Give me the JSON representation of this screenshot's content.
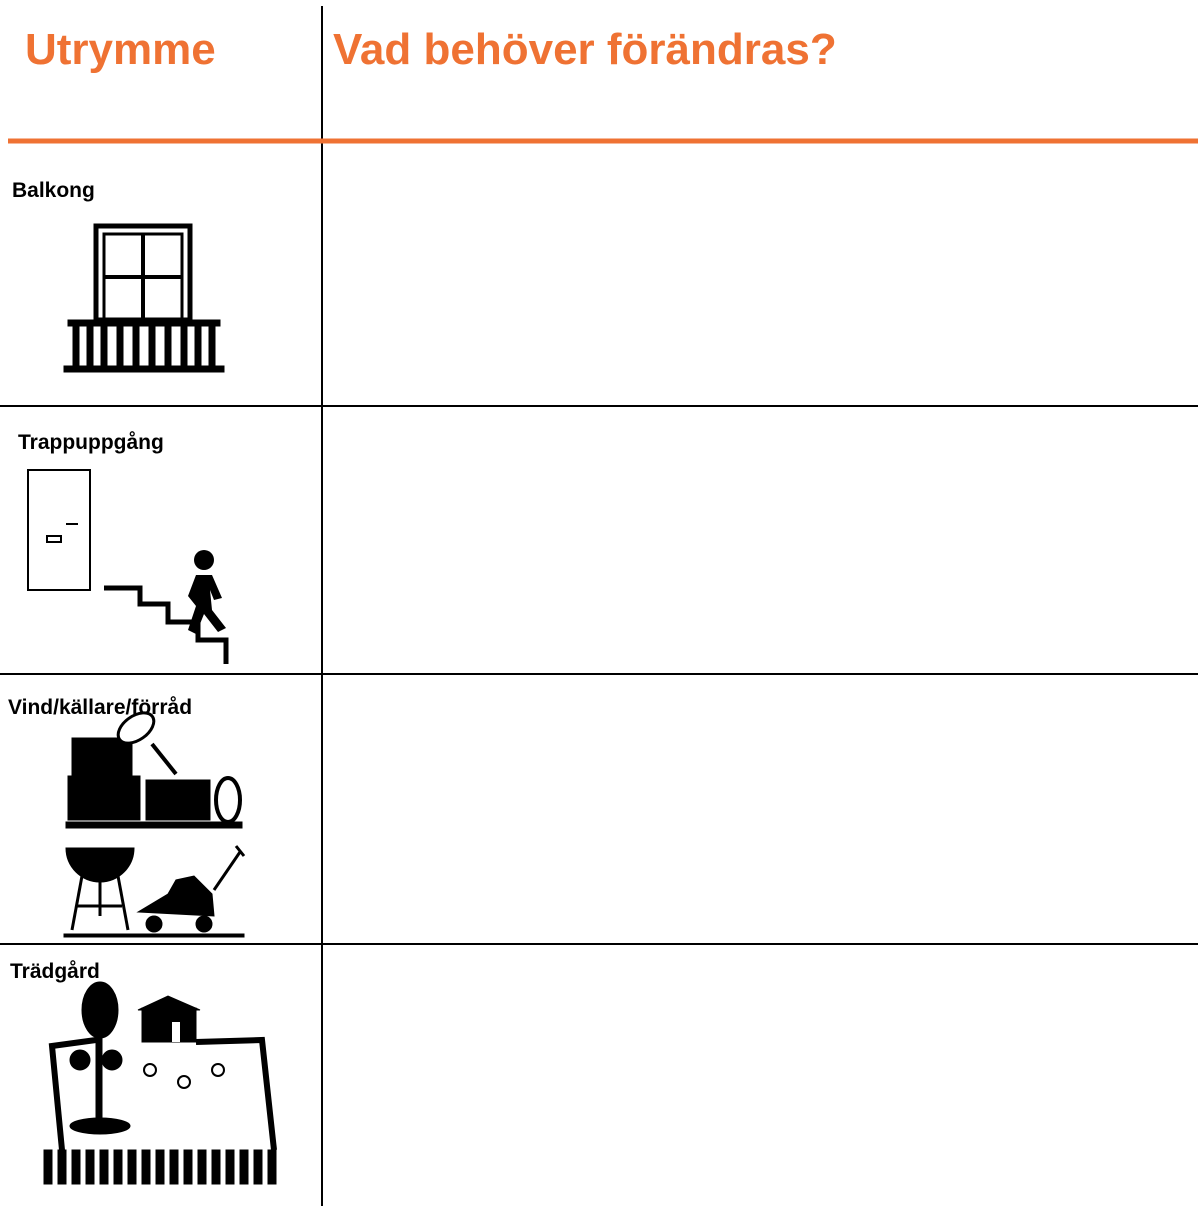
{
  "header": {
    "columns": [
      "Utrymme",
      "Vad behöver förändras?"
    ]
  },
  "rows": [
    "Balkong",
    "Trappuppgång",
    "Vind/källare/förråd",
    "Trädgård"
  ]
}
